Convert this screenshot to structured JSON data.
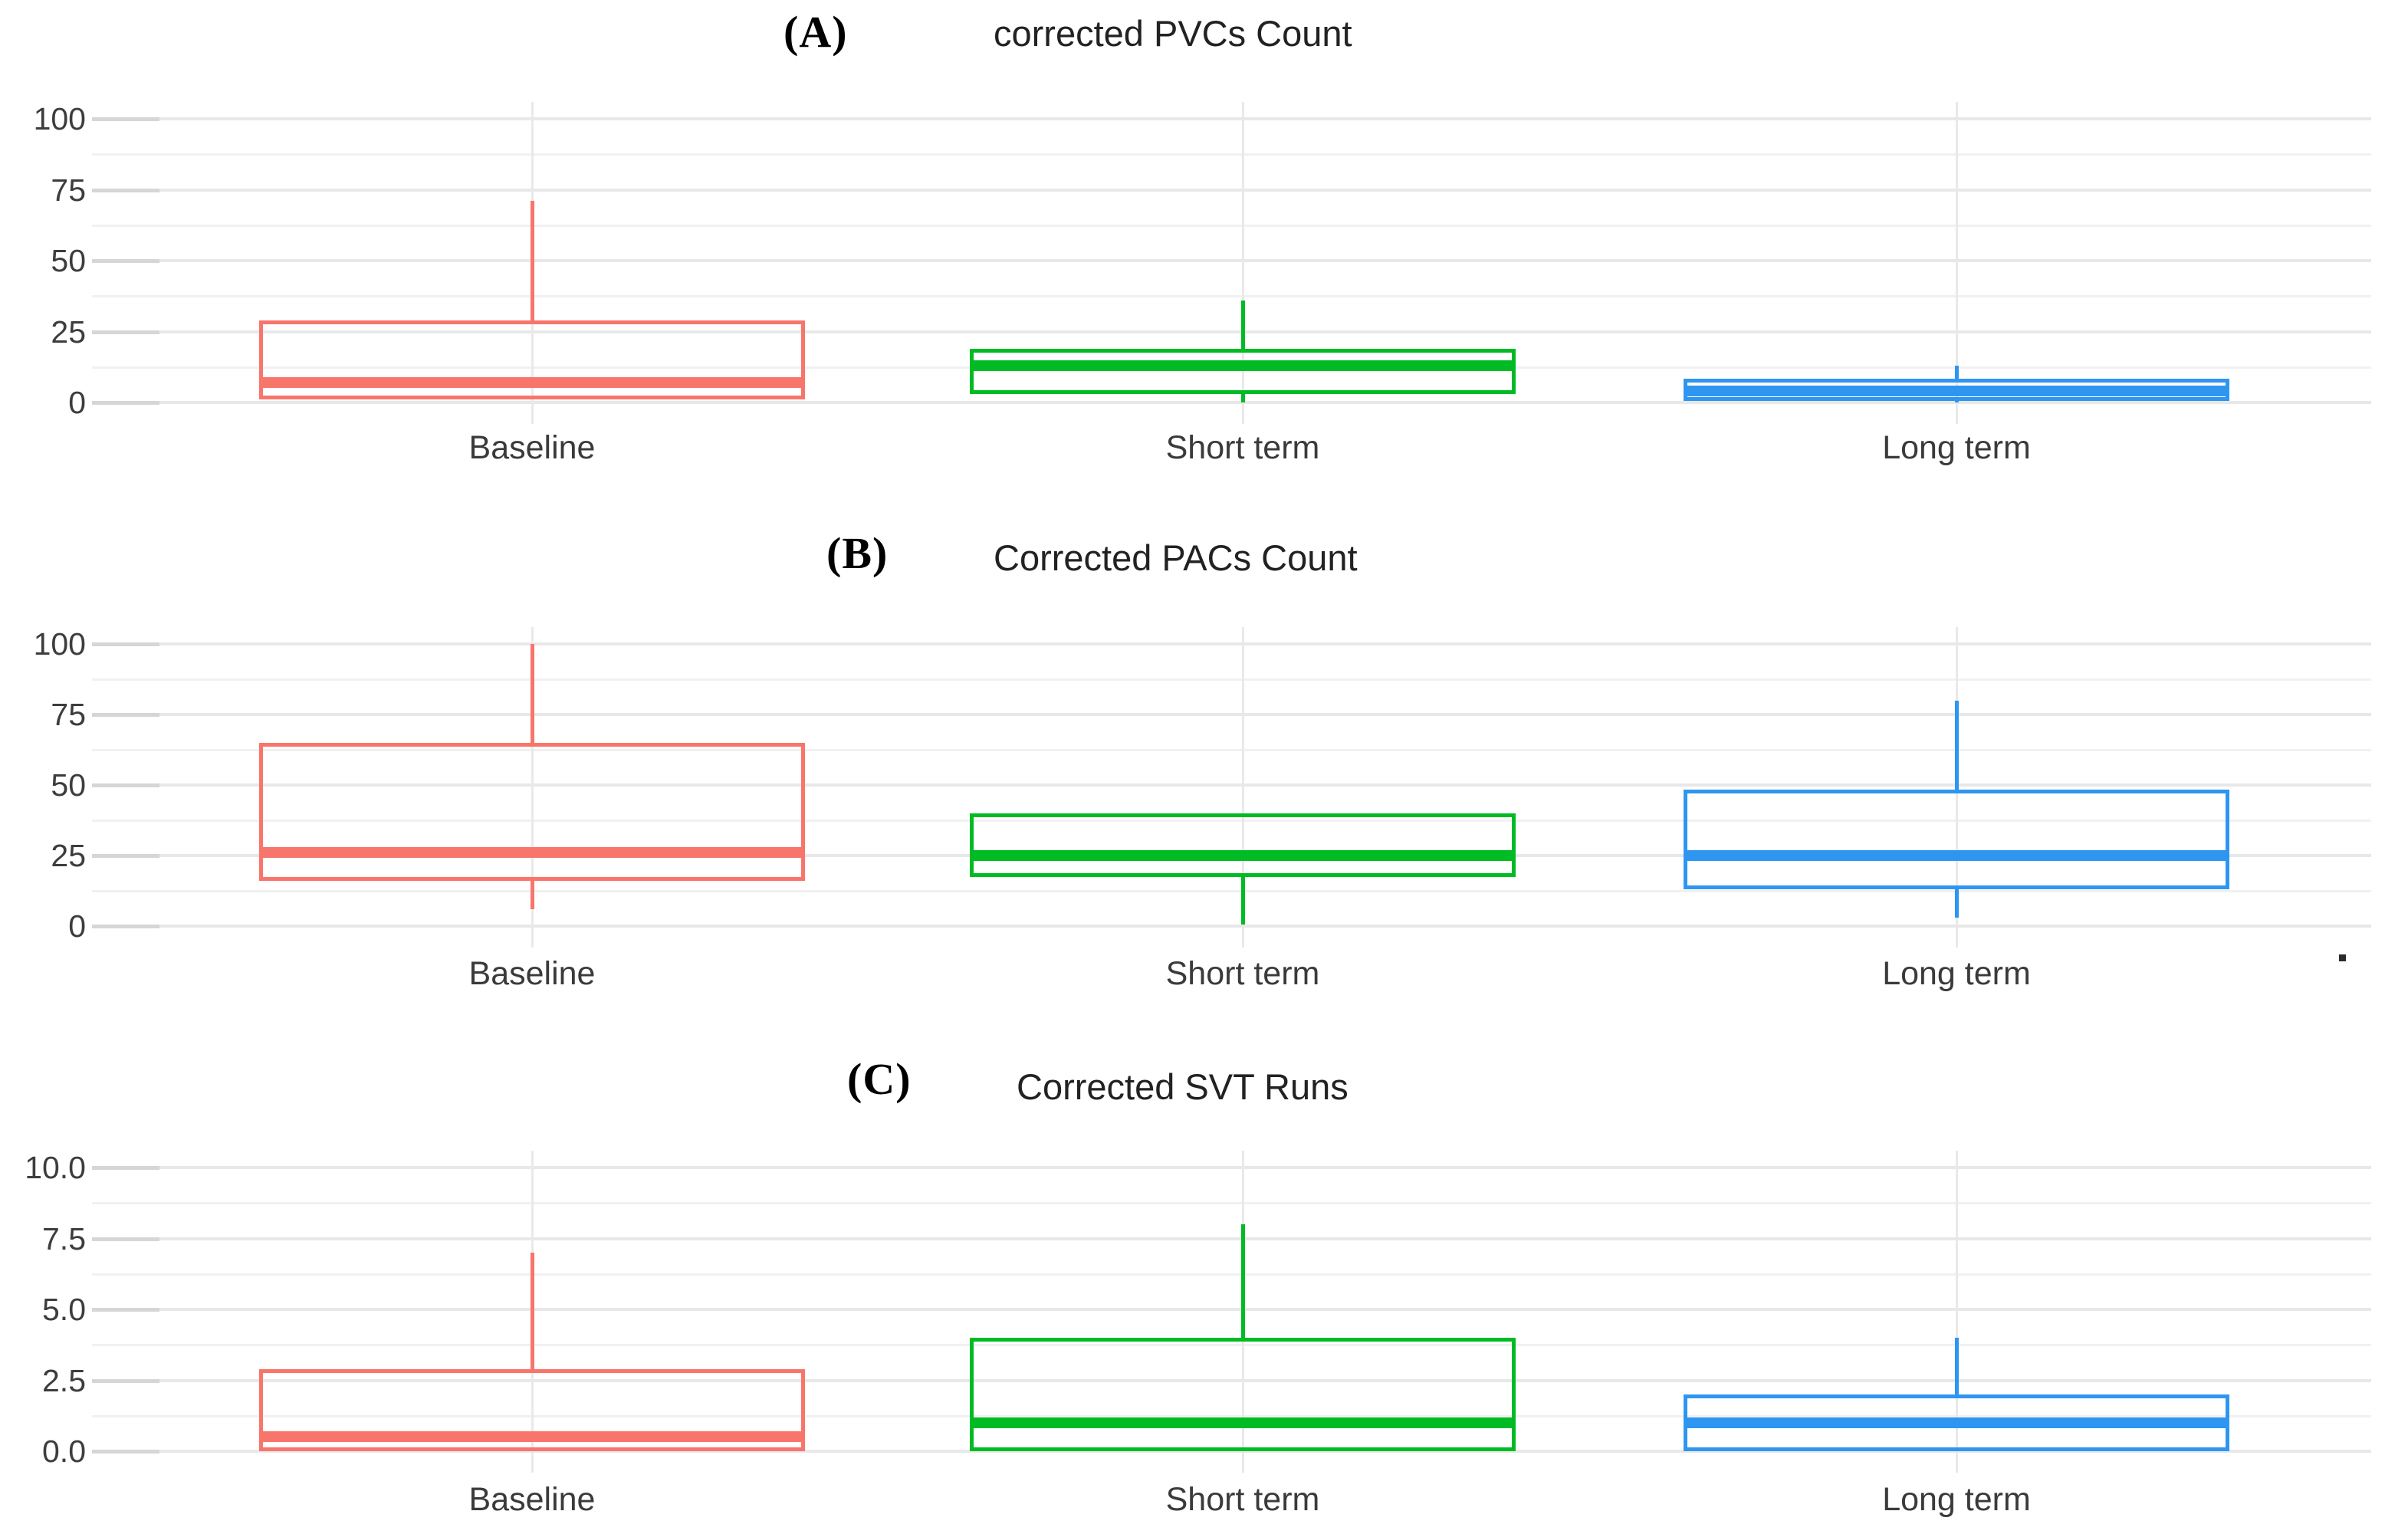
{
  "figure": {
    "background": "#ffffff",
    "categories": [
      "Baseline",
      "Short term",
      "Long term"
    ]
  },
  "colors": {
    "baseline": "#F8756C",
    "short_term": "#00BB24",
    "long_term": "#2E96F0",
    "grid_major": "#E8E8E8",
    "grid_minor": "#F1F1F1",
    "tick_text": "#3D3D3D"
  },
  "chart_data": [
    {
      "type": "box",
      "panel": "A",
      "label": "(A)",
      "title": "corrected PVCs Count",
      "ylim": [
        0,
        100
      ],
      "yticks": [
        0,
        25,
        50,
        75,
        100
      ],
      "ytick_labels": [
        "0",
        "25",
        "50",
        "75",
        "100"
      ],
      "minor_grid_step": 12.5,
      "grid": true,
      "categories": [
        "Baseline",
        "Short term",
        "Long term"
      ],
      "series": [
        {
          "category": "Baseline",
          "color": "#F8756C",
          "q1": 1,
          "median": 7,
          "q3": 29,
          "whisker_high": 71,
          "whisker_low": null
        },
        {
          "category": "Short term",
          "color": "#00BB24",
          "q1": 3,
          "median": 13,
          "q3": 19,
          "whisker_high": 36,
          "whisker_low": 0
        },
        {
          "category": "Long term",
          "color": "#2E96F0",
          "q1": 0.5,
          "median": 4,
          "q3": 8.5,
          "whisker_high": 13,
          "whisker_low": 0
        }
      ]
    },
    {
      "type": "box",
      "panel": "B",
      "label": "(B)",
      "title": "Corrected PACs Count",
      "ylim": [
        0,
        100
      ],
      "yticks": [
        0,
        25,
        50,
        75,
        100
      ],
      "ytick_labels": [
        "0",
        "25",
        "50",
        "75",
        "100"
      ],
      "minor_grid_step": 12.5,
      "grid": true,
      "categories": [
        "Baseline",
        "Short term",
        "Long term"
      ],
      "series": [
        {
          "category": "Baseline",
          "color": "#F8756C",
          "q1": 16,
          "median": 26,
          "q3": 65,
          "whisker_high": 100,
          "whisker_low": 6
        },
        {
          "category": "Short term",
          "color": "#00BB24",
          "q1": 17.5,
          "median": 25,
          "q3": 40,
          "whisker_high": null,
          "whisker_low": 0.5
        },
        {
          "category": "Long term",
          "color": "#2E96F0",
          "q1": 13,
          "median": 25,
          "q3": 48.5,
          "whisker_high": 80,
          "whisker_low": 3
        }
      ],
      "annotations": [
        {
          "type": "dot",
          "description": "tiny dark speck below axis at far right"
        }
      ]
    },
    {
      "type": "box",
      "panel": "C",
      "label": "(C)",
      "title": "Corrected SVT Runs",
      "ylim": [
        0,
        10
      ],
      "yticks": [
        0,
        2.5,
        5,
        7.5,
        10
      ],
      "ytick_labels": [
        "0.0",
        "2.5",
        "5.0",
        "7.5",
        "10.0"
      ],
      "minor_grid_step": 1.25,
      "grid": true,
      "categories": [
        "Baseline",
        "Short term",
        "Long term"
      ],
      "series": [
        {
          "category": "Baseline",
          "color": "#F8756C",
          "q1": 0,
          "median": 0.5,
          "q3": 2.9,
          "whisker_high": 7,
          "whisker_low": null
        },
        {
          "category": "Short term",
          "color": "#00BB24",
          "q1": 0,
          "median": 1,
          "q3": 4,
          "whisker_high": 8,
          "whisker_low": null
        },
        {
          "category": "Long term",
          "color": "#2E96F0",
          "q1": 0,
          "median": 1,
          "q3": 2,
          "whisker_high": 4,
          "whisker_low": null
        }
      ]
    }
  ]
}
